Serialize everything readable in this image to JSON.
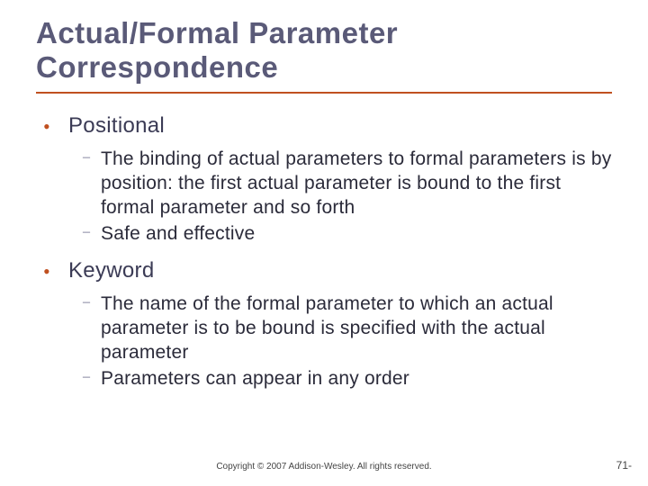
{
  "title": "Actual/Formal Parameter Correspondence",
  "colors": {
    "title_text": "#5a5a78",
    "rule": "#c05020",
    "bullet_primary": "#c05020",
    "bullet_secondary": "#6a6a88",
    "body_text": "#2b2b3a",
    "background": "#ffffff"
  },
  "typography": {
    "title_fontsize": 33,
    "level1_fontsize": 24,
    "level2_fontsize": 21,
    "footer_fontsize": 10
  },
  "bullets": [
    {
      "label": "Positional",
      "sub": [
        "The binding of actual parameters to formal parameters is by position: the first actual parameter is bound to the first formal parameter and so forth",
        "Safe and effective"
      ]
    },
    {
      "label": "Keyword",
      "sub": [
        "The name of the formal parameter to which an actual parameter is to be bound is specified with the actual parameter",
        "Parameters can appear in any order"
      ]
    }
  ],
  "footer": {
    "copyright": "Copyright © 2007 Addison-Wesley. All rights reserved.",
    "pagenum": "71-"
  }
}
